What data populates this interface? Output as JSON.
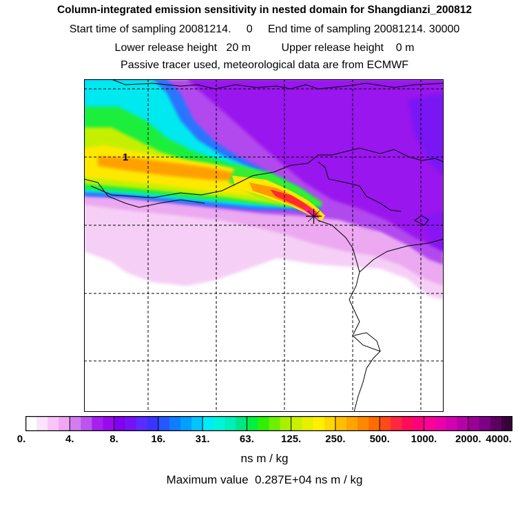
{
  "header": {
    "title": "Column-integrated emission sensitivity in nested domain for Shangdianzi_200812",
    "line1": "Start time of sampling 20081214.     0     End time of sampling 20081214. 30000",
    "line2": "Lower release height   20 m          Upper release height    0 m",
    "line3": "Passive tracer used, meteorological data are from ECMWF"
  },
  "chart_data": {
    "type": "heatmap",
    "title": "Column-integrated emission sensitivity in nested domain for Shangdianzi_200812",
    "units": "ns m / kg",
    "max_value_text": "Maximum value  0.287E+04 ns m / kg",
    "contour_label": "1",
    "grid": true,
    "grid_style": "dashed",
    "release_marker": "cross",
    "colorbar": {
      "tick_labels": [
        "0.",
        "4.",
        "8.",
        "16.",
        "31.",
        "63.",
        "125.",
        "250.",
        "500.",
        "1000.",
        "2000.",
        "4000."
      ],
      "levels": [
        0,
        4,
        8,
        16,
        31,
        63,
        125,
        250,
        500,
        1000,
        2000,
        4000
      ],
      "colors": [
        "#ffffff",
        "#fbe3fb",
        "#f7c5f7",
        "#f0a6f2",
        "#d27cf0",
        "#bb55ee",
        "#a421ee",
        "#9a0aee",
        "#8000f0",
        "#7414f6",
        "#5b2cff",
        "#3a34ff",
        "#2558ff",
        "#0f7dff",
        "#00a0ff",
        "#00c6ff",
        "#00ecf8",
        "#00f5d8",
        "#00eebc",
        "#00e682",
        "#00f041",
        "#2ff000",
        "#6cf000",
        "#a8f000",
        "#c9f000",
        "#e6f000",
        "#fff000",
        "#ffd800",
        "#ffbf00",
        "#ffa400",
        "#ff8800",
        "#ff6b00",
        "#ff4a1b",
        "#ff2840",
        "#ff0c58",
        "#ff007d",
        "#ff0096",
        "#ec00aa",
        "#d200b2",
        "#b800a8",
        "#9a0097",
        "#7d0085",
        "#5e0062",
        "#3a003d"
      ]
    }
  }
}
